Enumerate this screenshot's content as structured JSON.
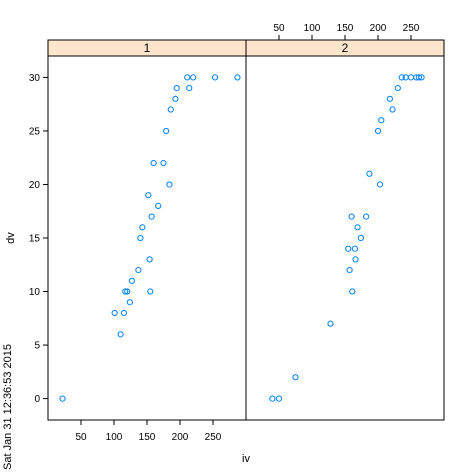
{
  "colors": {
    "strip_fill": "#ffe5cc",
    "point_stroke": "#0080ff",
    "frame": "#000000",
    "background": "#ffffff"
  },
  "chart_data": {
    "type": "scatter",
    "layout": "two-panel lattice, side by side, shared y axis",
    "xlabel": "iv",
    "ylabel": "dv",
    "ylim": [
      -2,
      32
    ],
    "yticks": [
      0,
      5,
      10,
      15,
      20,
      25,
      30
    ],
    "xlim": [
      0,
      300
    ],
    "xticks": [
      50,
      100,
      150,
      200,
      250
    ],
    "x_tick_placement": "panel 1 bottom, panel 2 top",
    "grid": false,
    "timestamp": "Sat Jan 31 12:36:53 2015",
    "panels": [
      {
        "strip": "1",
        "points": [
          [
            22,
            0
          ],
          [
            110,
            6
          ],
          [
            101,
            8
          ],
          [
            115,
            8
          ],
          [
            117,
            10
          ],
          [
            120,
            10
          ],
          [
            124,
            9
          ],
          [
            127,
            11
          ],
          [
            137,
            12
          ],
          [
            140,
            15
          ],
          [
            143,
            16
          ],
          [
            152,
            19
          ],
          [
            154,
            13
          ],
          [
            155,
            10
          ],
          [
            157,
            17
          ],
          [
            160,
            22
          ],
          [
            167,
            18
          ],
          [
            175,
            22
          ],
          [
            179,
            25
          ],
          [
            184,
            20
          ],
          [
            186,
            27
          ],
          [
            193,
            28
          ],
          [
            195,
            29
          ],
          [
            211,
            30
          ],
          [
            214,
            29
          ],
          [
            220,
            30
          ],
          [
            253,
            30
          ],
          [
            287,
            30
          ]
        ]
      },
      {
        "strip": "2",
        "points": [
          [
            40,
            0
          ],
          [
            50,
            0
          ],
          [
            75,
            2
          ],
          [
            128,
            7
          ],
          [
            155,
            14
          ],
          [
            157,
            12
          ],
          [
            160,
            17
          ],
          [
            161,
            10
          ],
          [
            165,
            14
          ],
          [
            166,
            13
          ],
          [
            169,
            16
          ],
          [
            174,
            15
          ],
          [
            182,
            17
          ],
          [
            187,
            21
          ],
          [
            200,
            25
          ],
          [
            203,
            20
          ],
          [
            205,
            26
          ],
          [
            218,
            28
          ],
          [
            222,
            27
          ],
          [
            230,
            29
          ],
          [
            236,
            30
          ],
          [
            242,
            30
          ],
          [
            250,
            30
          ],
          [
            258,
            30
          ],
          [
            262,
            30
          ],
          [
            266,
            30
          ]
        ]
      }
    ]
  }
}
